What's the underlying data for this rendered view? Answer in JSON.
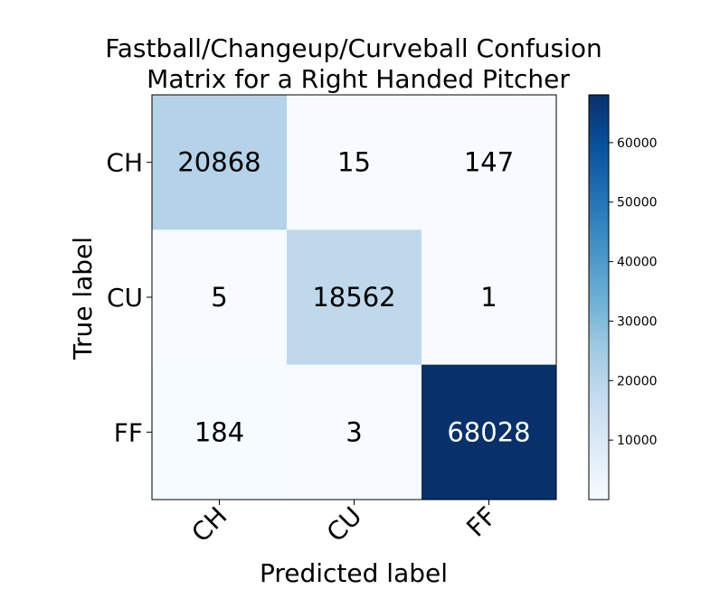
{
  "chart_data": {
    "type": "heatmap",
    "title": "Fastball/Changeup/Curveball Confusion\nMatrix for a Right Handed Pitcher",
    "xlabel": "Predicted label",
    "ylabel": "True label",
    "x_categories": [
      "CH",
      "CU",
      "FF"
    ],
    "y_categories": [
      "CH",
      "CU",
      "FF"
    ],
    "values": [
      [
        20868,
        15,
        147
      ],
      [
        5,
        18562,
        1
      ],
      [
        184,
        3,
        68028
      ]
    ],
    "colormap": "Blues",
    "colorbar": {
      "min": 1,
      "max": 68028,
      "ticks": [
        10000,
        20000,
        30000,
        40000,
        50000,
        60000
      ]
    },
    "grid": false,
    "legend": "none",
    "text_color_dark_cells": "#ffffff",
    "text_color_light_cells": "#000000"
  }
}
